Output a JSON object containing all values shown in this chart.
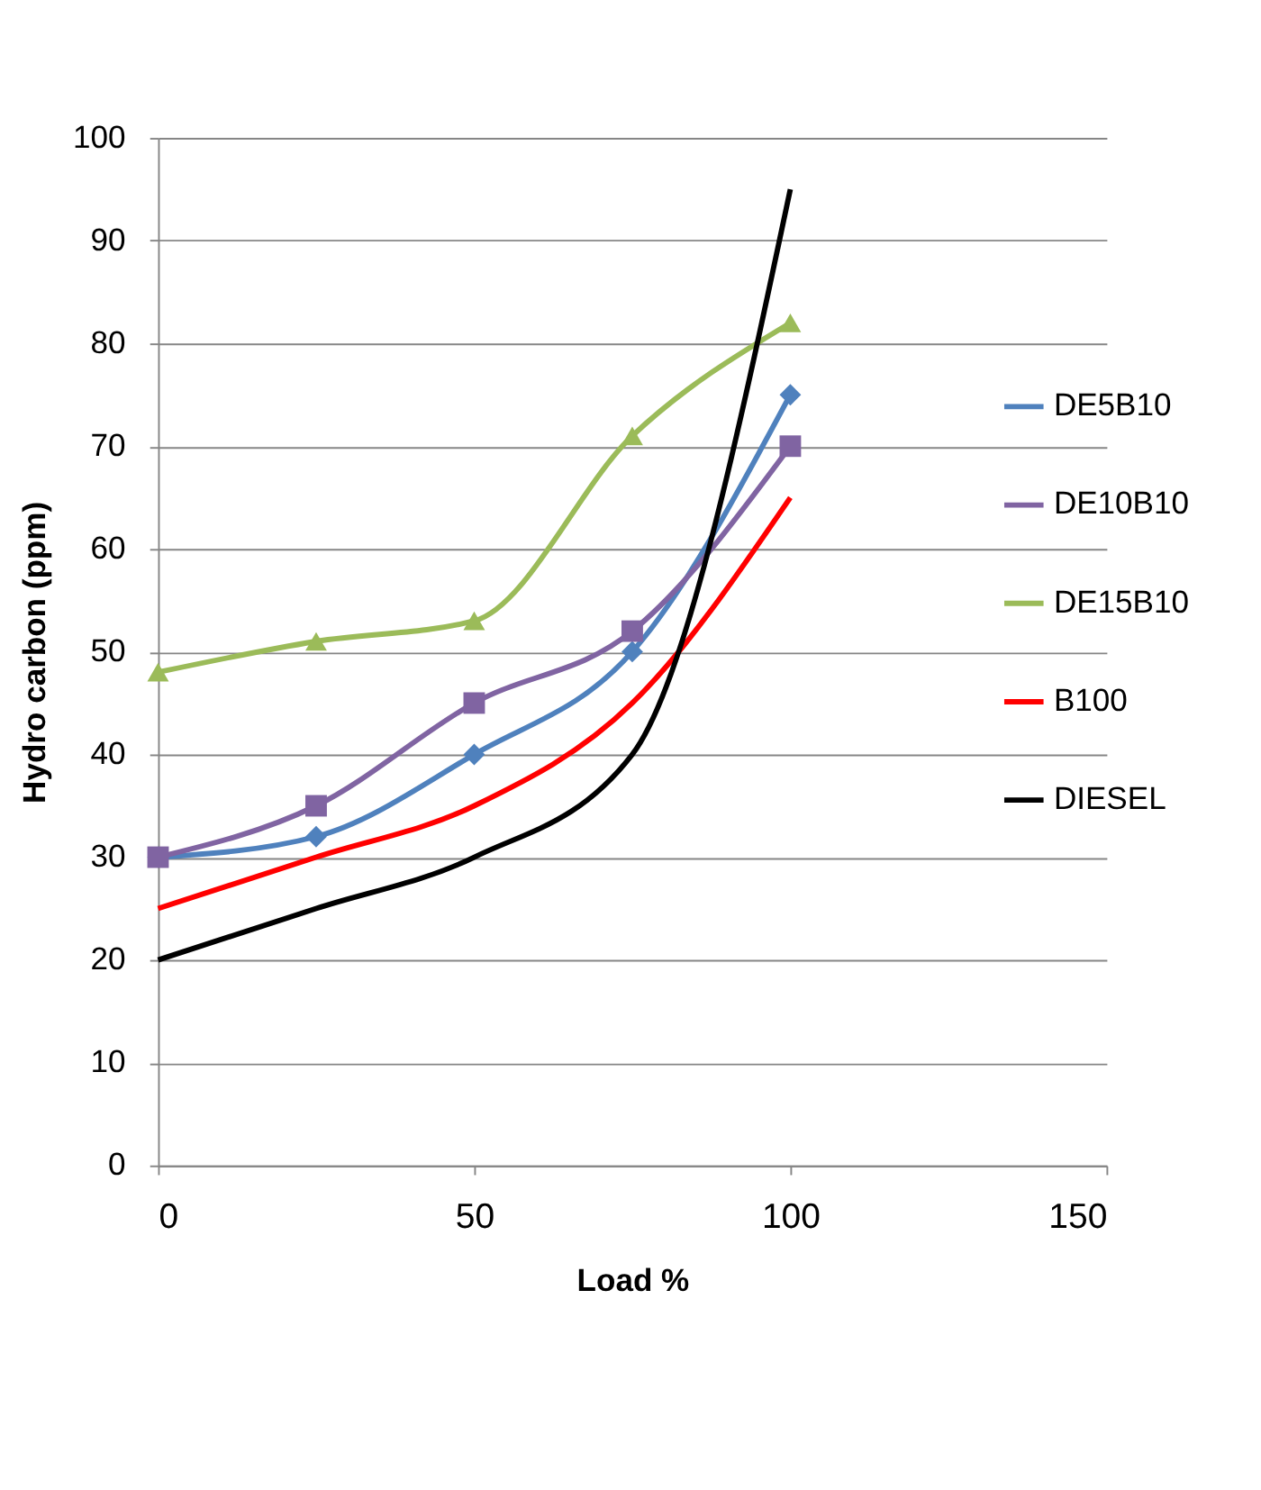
{
  "chart_data": {
    "type": "line",
    "xlabel": "Load %",
    "ylabel": "Hydro carbon (ppm)",
    "x": [
      0,
      25,
      50,
      75,
      100
    ],
    "series": [
      {
        "name": "DE5B10",
        "color": "#4f81bd",
        "marker": "diamond",
        "values": [
          30,
          32,
          40,
          50,
          75
        ]
      },
      {
        "name": "DE10B10",
        "color": "#8064a2",
        "marker": "square",
        "values": [
          30,
          35,
          45,
          52,
          70
        ]
      },
      {
        "name": "DE15B10",
        "color": "#9bbb59",
        "marker": "triangle",
        "values": [
          48,
          51,
          53,
          71,
          82
        ]
      },
      {
        "name": "B100",
        "color": "#ff0000",
        "marker": "none",
        "values": [
          25,
          30,
          35,
          45,
          65
        ]
      },
      {
        "name": "DIESEL",
        "color": "#000000",
        "marker": "none",
        "values": [
          20,
          25,
          30,
          40,
          95
        ]
      }
    ],
    "xlim": [
      0,
      150
    ],
    "xticks": [
      0,
      50,
      100,
      150
    ],
    "ylim": [
      0,
      100
    ],
    "yticks": [
      0,
      10,
      20,
      30,
      40,
      50,
      60,
      70,
      80,
      90,
      100
    ],
    "grid": "y",
    "legend": "right",
    "line_style": "solid"
  }
}
